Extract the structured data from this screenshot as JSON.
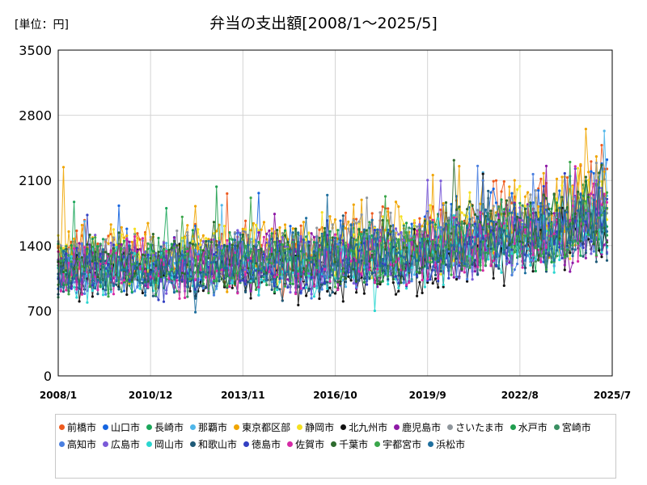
{
  "chart_data": {
    "type": "line",
    "title": "弁当の支出額[2008/1～2025/5]",
    "unit_label": "[単位：円]",
    "y_ticks": [
      0,
      700,
      1400,
      2100,
      2800,
      3500
    ],
    "ylim": [
      0,
      3500
    ],
    "x_ticks": [
      "2008/1",
      "2010/12",
      "2013/11",
      "2016/10",
      "2019/9",
      "2022/8",
      "2025/7"
    ],
    "x_range": [
      "2008/1",
      "2025/7"
    ],
    "grid": true,
    "legend_position": "bottom",
    "series": [
      {
        "name": "前橋市",
        "color": "#ee5a1e",
        "anchors": [
          1350,
          1280,
          1310,
          1350,
          1300,
          1330,
          1470,
          1420,
          1600,
          1690,
          1730,
          2180
        ]
      },
      {
        "name": "山口市",
        "color": "#1565e0",
        "anchors": [
          1200,
          1250,
          1220,
          1280,
          1300,
          1280,
          1400,
          1380,
          1550,
          1600,
          1680,
          1950
        ]
      },
      {
        "name": "長崎市",
        "color": "#1ba65a",
        "anchors": [
          1150,
          1200,
          1180,
          1220,
          1260,
          1240,
          1330,
          1330,
          1450,
          1520,
          1560,
          1720
        ]
      },
      {
        "name": "那覇市",
        "color": "#4fb6ea",
        "anchors": [
          1100,
          1150,
          1130,
          1180,
          1200,
          1200,
          1300,
          1290,
          1420,
          1500,
          1550,
          1780
        ]
      },
      {
        "name": "東京都区部",
        "color": "#f0a500",
        "anchors": [
          1300,
          1320,
          1330,
          1380,
          1400,
          1380,
          1480,
          1470,
          1600,
          1680,
          1720,
          2000
        ]
      },
      {
        "name": "静岡市",
        "color": "#f5e020",
        "anchors": [
          1250,
          1280,
          1270,
          1310,
          1340,
          1320,
          1410,
          1400,
          1550,
          1620,
          1680,
          1900
        ]
      },
      {
        "name": "北九州市",
        "color": "#111111",
        "anchors": [
          1100,
          1120,
          1080,
          1080,
          1050,
          1020,
          1050,
          1030,
          1200,
          1300,
          1320,
          1400
        ]
      },
      {
        "name": "鹿児島市",
        "color": "#8e1aa6",
        "anchors": [
          1150,
          1180,
          1160,
          1200,
          1230,
          1220,
          1300,
          1290,
          1400,
          1480,
          1500,
          1650
        ]
      },
      {
        "name": "さいたま市",
        "color": "#8f969c",
        "anchors": [
          1200,
          1240,
          1230,
          1270,
          1300,
          1290,
          1380,
          1370,
          1500,
          1600,
          1650,
          1850
        ]
      },
      {
        "name": "水戸市",
        "color": "#1f9e4e",
        "anchors": [
          1250,
          1230,
          1200,
          1230,
          1250,
          1230,
          1320,
          1310,
          1440,
          1520,
          1560,
          1760
        ]
      },
      {
        "name": "宮崎市",
        "color": "#3a8f62",
        "anchors": [
          1150,
          1170,
          1150,
          1190,
          1210,
          1200,
          1290,
          1290,
          1420,
          1480,
          1520,
          1700
        ]
      },
      {
        "name": "高知市",
        "color": "#4a7fe0",
        "anchors": [
          1100,
          1120,
          1110,
          1150,
          1170,
          1160,
          1250,
          1250,
          1380,
          1450,
          1490,
          1640
        ]
      },
      {
        "name": "広島市",
        "color": "#7a5ad8",
        "anchors": [
          1150,
          1180,
          1170,
          1210,
          1230,
          1220,
          1300,
          1290,
          1400,
          1480,
          1510,
          1680
        ]
      },
      {
        "name": "岡山市",
        "color": "#2ad6d0",
        "anchors": [
          1100,
          1130,
          1120,
          1160,
          1180,
          1170,
          1260,
          1260,
          1390,
          1470,
          1500,
          1660
        ]
      },
      {
        "name": "和歌山市",
        "color": "#1f5a78",
        "anchors": [
          1050,
          1080,
          1060,
          1100,
          1120,
          1110,
          1200,
          1200,
          1330,
          1400,
          1430,
          1560
        ]
      },
      {
        "name": "徳島市",
        "color": "#3340c2",
        "anchors": [
          1100,
          1120,
          1110,
          1150,
          1170,
          1160,
          1240,
          1240,
          1360,
          1430,
          1470,
          1620
        ]
      },
      {
        "name": "佐賀市",
        "color": "#d62aa6",
        "anchors": [
          1150,
          1170,
          1160,
          1190,
          1210,
          1200,
          1280,
          1280,
          1400,
          1460,
          1500,
          1660
        ]
      },
      {
        "name": "千葉市",
        "color": "#2e6b2e",
        "anchors": [
          1200,
          1230,
          1220,
          1260,
          1290,
          1280,
          1370,
          1360,
          1500,
          1590,
          1640,
          1830
        ]
      },
      {
        "name": "宇都宮市",
        "color": "#3aa64a",
        "anchors": [
          1150,
          1170,
          1160,
          1200,
          1220,
          1210,
          1300,
          1300,
          1420,
          1500,
          1530,
          1700
        ]
      },
      {
        "name": "浜松市",
        "color": "#1e6f9e",
        "anchors": [
          1150,
          1180,
          1170,
          1210,
          1230,
          1220,
          1310,
          1300,
          1430,
          1510,
          1550,
          1720
        ]
      }
    ]
  }
}
